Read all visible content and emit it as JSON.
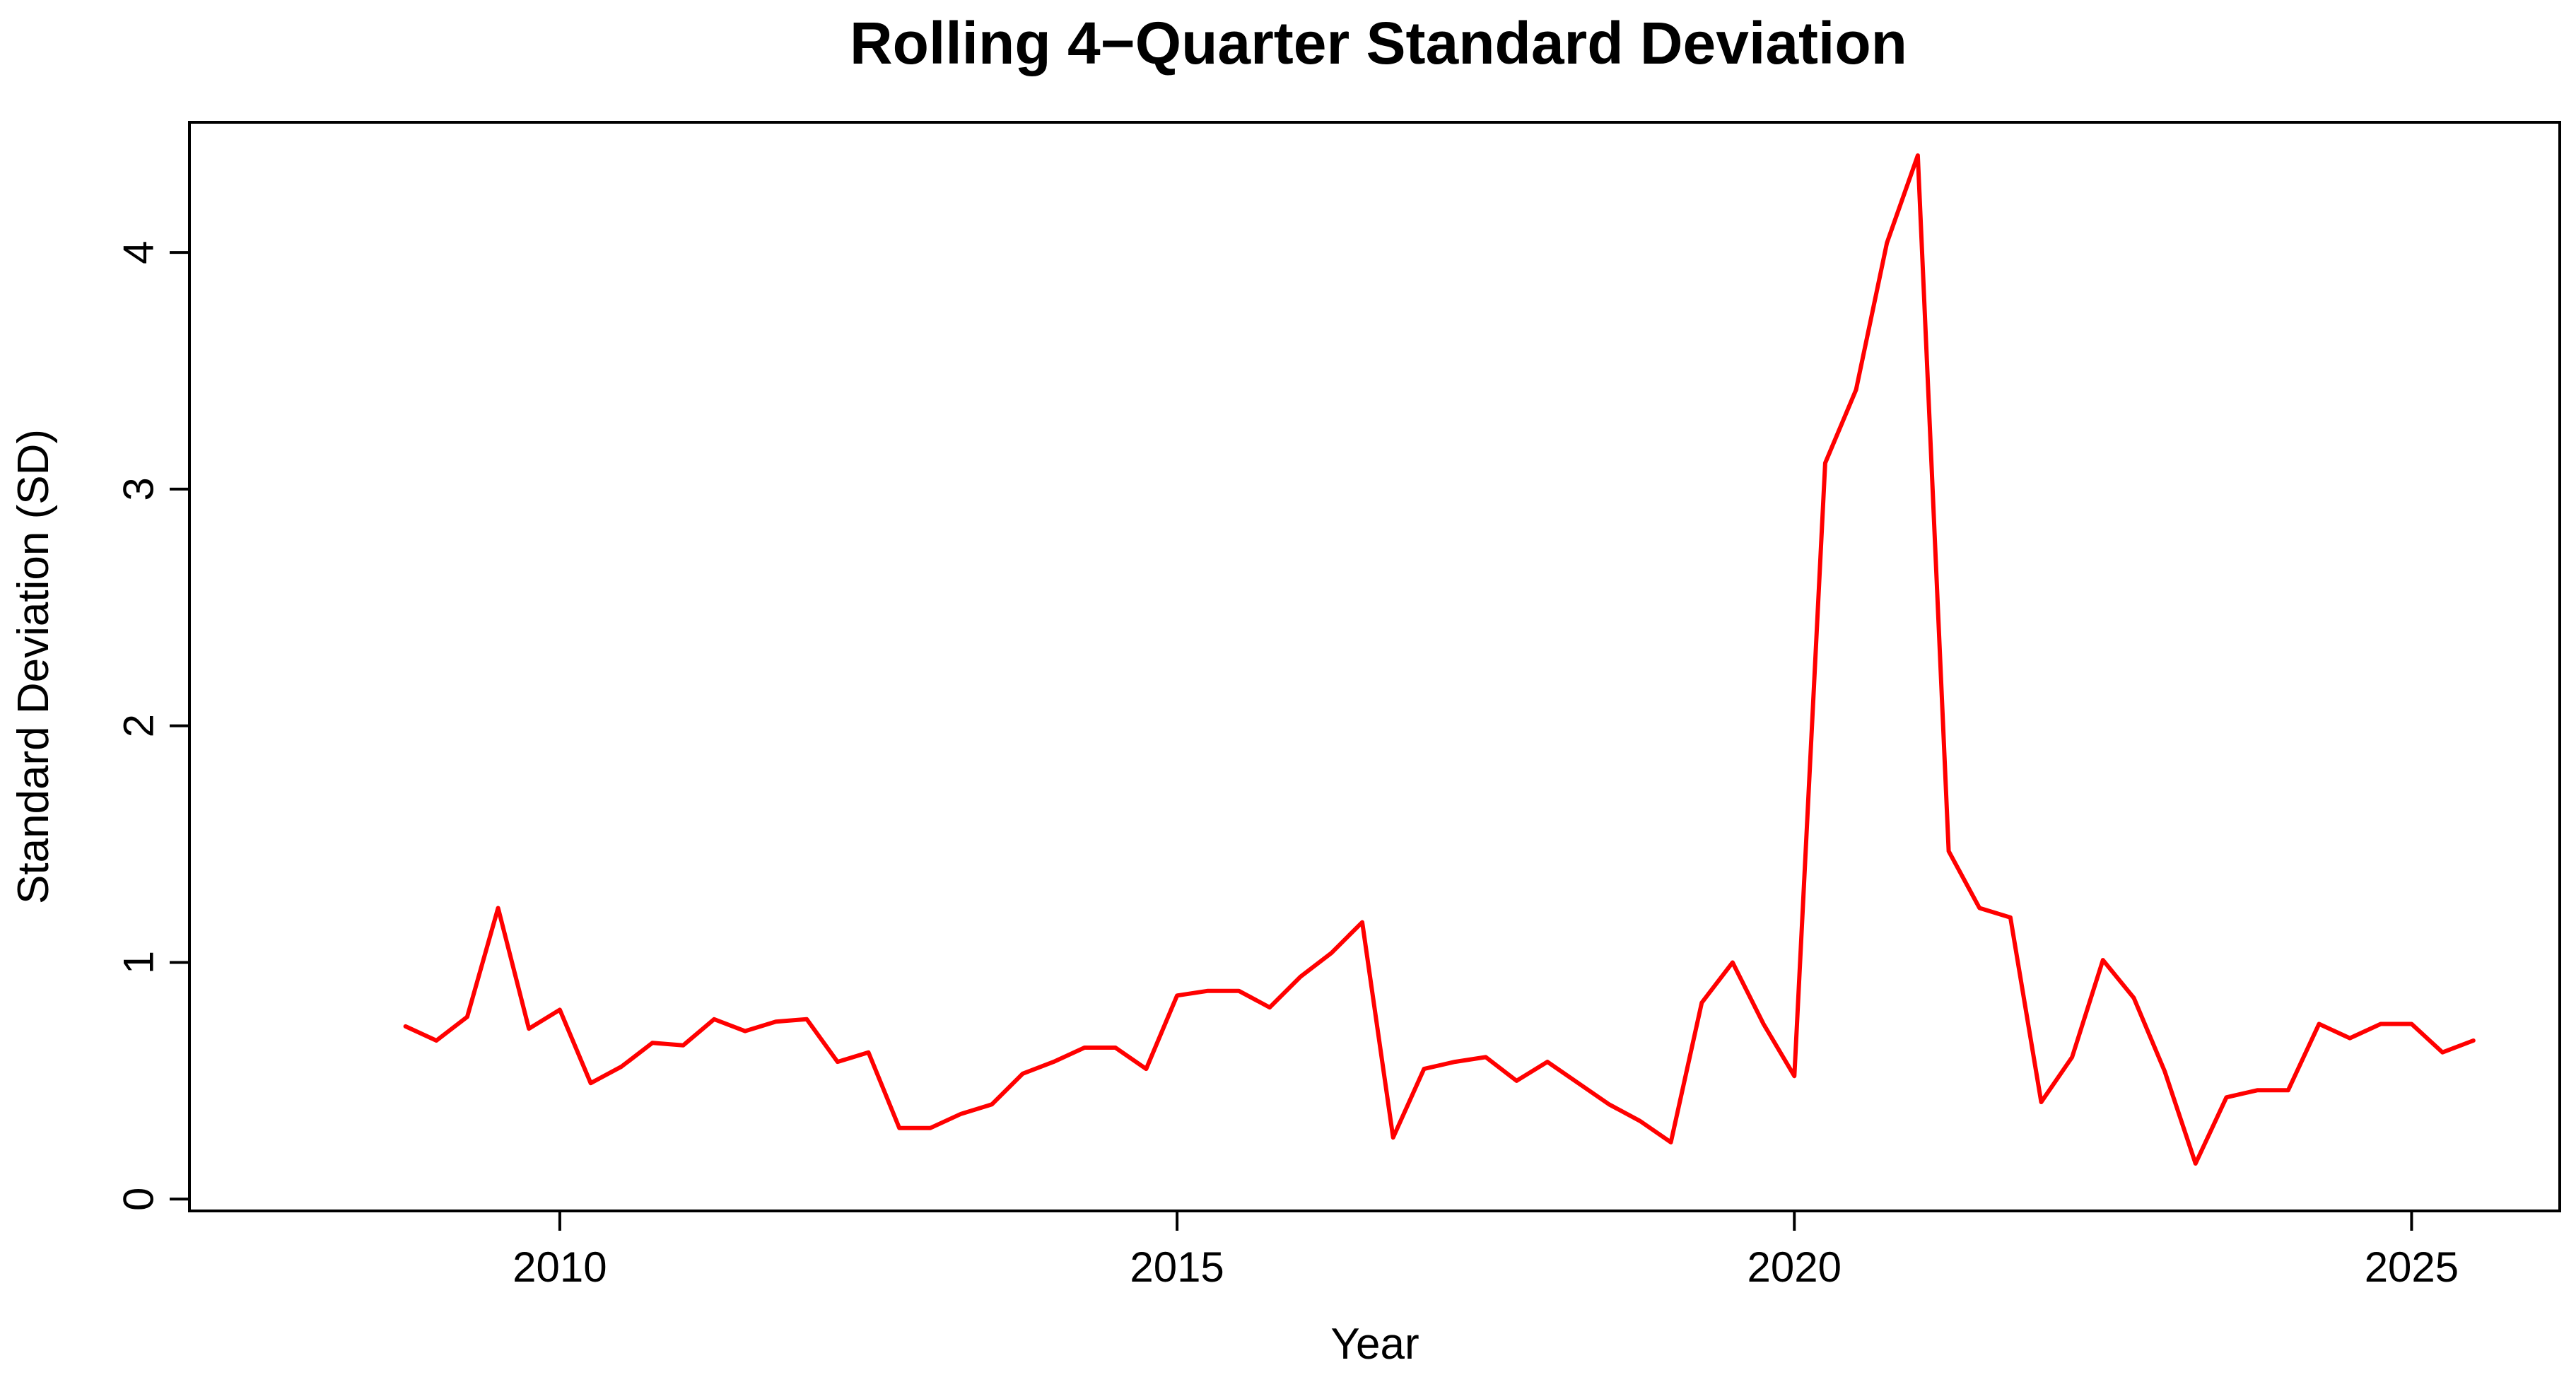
{
  "chart_data": {
    "type": "line",
    "title": "Rolling 4−Quarter Standard Deviation",
    "xlabel": "Year",
    "ylabel": "Standard Deviation (SD)",
    "xlim": [
      2007.0,
      2026.2
    ],
    "ylim": [
      -0.05,
      4.55
    ],
    "x_ticks": [
      2010,
      2015,
      2020,
      2025
    ],
    "y_ticks": [
      0,
      1,
      2,
      3,
      4
    ],
    "grid": false,
    "legend": "none",
    "series": [
      {
        "color": "#ff0000",
        "x": [
          2008.75,
          2009.0,
          2009.25,
          2009.5,
          2009.75,
          2010.0,
          2010.25,
          2010.5,
          2010.75,
          2011.0,
          2011.25,
          2011.5,
          2011.75,
          2012.0,
          2012.25,
          2012.5,
          2012.75,
          2013.0,
          2013.25,
          2013.5,
          2013.75,
          2014.0,
          2014.25,
          2014.5,
          2014.75,
          2015.0,
          2015.25,
          2015.5,
          2015.75,
          2016.0,
          2016.25,
          2016.5,
          2016.75,
          2017.0,
          2017.25,
          2017.5,
          2017.75,
          2018.0,
          2018.25,
          2018.5,
          2018.75,
          2019.0,
          2019.25,
          2019.5,
          2019.75,
          2020.0,
          2020.25,
          2020.5,
          2020.75,
          2021.0,
          2021.25,
          2021.5,
          2021.75,
          2022.0,
          2022.25,
          2022.5,
          2022.75,
          2023.0,
          2023.25,
          2023.5,
          2023.75,
          2024.0,
          2024.25,
          2024.5,
          2024.75,
          2025.0,
          2025.25,
          2025.5
        ],
        "values": [
          0.73,
          0.67,
          0.77,
          1.23,
          0.72,
          0.8,
          0.49,
          0.56,
          0.66,
          0.65,
          0.76,
          0.71,
          0.75,
          0.76,
          0.58,
          0.62,
          0.3,
          0.3,
          0.36,
          0.4,
          0.53,
          0.58,
          0.64,
          0.64,
          0.55,
          0.86,
          0.88,
          0.88,
          0.81,
          0.94,
          1.04,
          1.17,
          0.26,
          0.55,
          0.58,
          0.6,
          0.5,
          0.58,
          0.49,
          0.4,
          0.33,
          0.24,
          0.83,
          1.0,
          0.74,
          0.52,
          3.11,
          3.42,
          4.04,
          4.41,
          1.47,
          1.23,
          1.19,
          0.41,
          0.6,
          1.01,
          0.85,
          0.54,
          0.15,
          0.43,
          0.46,
          0.46,
          0.74,
          0.68,
          0.74,
          0.74,
          0.62,
          0.67
        ]
      }
    ]
  }
}
